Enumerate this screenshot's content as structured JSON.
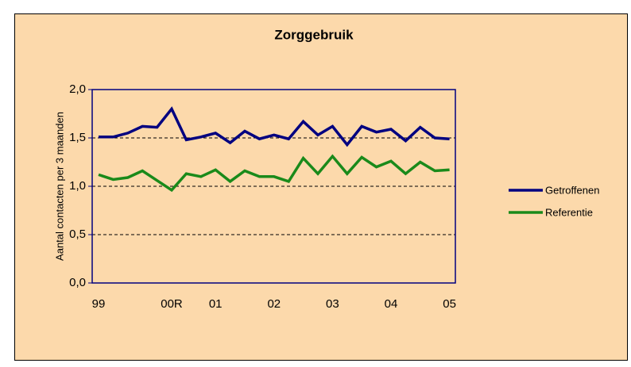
{
  "chart_data": {
    "type": "line",
    "title": "Zorggebruik",
    "y_label": "Aantal contacten per 3 maanden",
    "categories": [
      "99",
      null,
      null,
      null,
      null,
      "00R",
      null,
      null,
      "01",
      null,
      null,
      null,
      "02",
      null,
      null,
      null,
      "03",
      null,
      null,
      null,
      "04",
      null,
      null,
      null,
      "05"
    ],
    "series": [
      {
        "name": "Getroffenen",
        "color": "#000080",
        "values": [
          1.51,
          1.51,
          1.55,
          1.62,
          1.61,
          1.8,
          1.48,
          1.51,
          1.55,
          1.45,
          1.57,
          1.49,
          1.53,
          1.49,
          1.67,
          1.53,
          1.62,
          1.43,
          1.62,
          1.56,
          1.59,
          1.47,
          1.61,
          1.5,
          1.49
        ]
      },
      {
        "name": "Referentie",
        "color": "#1a8a1a",
        "values": [
          1.12,
          1.07,
          1.09,
          1.16,
          1.06,
          0.96,
          1.13,
          1.1,
          1.17,
          1.05,
          1.16,
          1.1,
          1.1,
          1.05,
          1.29,
          1.13,
          1.31,
          1.13,
          1.3,
          1.2,
          1.26,
          1.13,
          1.25,
          1.16,
          1.17
        ]
      }
    ],
    "ylim": [
      0,
      2
    ],
    "yticks": [
      {
        "value": 0,
        "label": "0,0"
      },
      {
        "value": 0.5,
        "label": "0,5"
      },
      {
        "value": 1,
        "label": "1,0"
      },
      {
        "value": 1.5,
        "label": "1,5"
      },
      {
        "value": 2,
        "label": "2,0"
      }
    ],
    "grid": true,
    "legend": "right"
  }
}
